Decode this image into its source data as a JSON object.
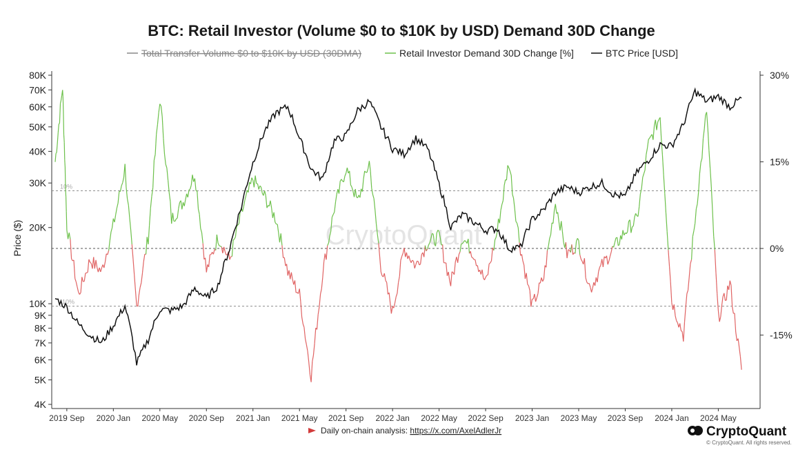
{
  "chart_data": {
    "type": "line",
    "title": "BTC: Retail Investor (Volume $0 to $10K by USD) Demand 30D Change",
    "legend": [
      {
        "label": "Total Transfer Volume $0 to $10K by USD (30DMA)",
        "color": "#888888",
        "hidden": true
      },
      {
        "label": "Retail Investor Demand 30D Change [%]",
        "color": "#6cc04a",
        "hidden": false
      },
      {
        "label": "BTC Price [USD]",
        "color": "#111111",
        "hidden": false
      }
    ],
    "legend_position": "top-center",
    "x_tick_labels": [
      "2019 Sep",
      "2020 Jan",
      "2020 May",
      "2020 Sep",
      "2021 Jan",
      "2021 May",
      "2021 Sep",
      "2022 Jan",
      "2022 May",
      "2022 Sep",
      "2023 Jan",
      "2023 May",
      "2023 Sep",
      "2024 Jan",
      "2024 May"
    ],
    "xlim": [
      "2019-08",
      "2024-08"
    ],
    "left_axis": {
      "label": "Price ($)",
      "scale": "log",
      "range": [
        4000,
        80000
      ],
      "tick_values": [
        4000,
        5000,
        6000,
        7000,
        8000,
        9000,
        10000,
        20000,
        30000,
        40000,
        50000,
        60000,
        70000,
        80000
      ],
      "tick_labels": [
        "4K",
        "5K",
        "6K",
        "7K",
        "8K",
        "9K",
        "10K",
        "20K",
        "30K",
        "40K",
        "50K",
        "60K",
        "70K",
        "80K"
      ]
    },
    "right_axis": {
      "label": "",
      "range": [
        -27,
        30
      ],
      "tick_values": [
        30,
        15,
        0,
        -15
      ],
      "tick_labels": [
        "30%",
        "15%",
        "0%",
        "-15%"
      ]
    },
    "reference_lines": [
      {
        "value": 10,
        "label": "10%"
      },
      {
        "value": 0,
        "label": ""
      },
      {
        "value": -10,
        "label": "-10%"
      }
    ],
    "positive_color": "#6cc04a",
    "negative_color": "#e06262",
    "price_series": {
      "name": "BTC Price [USD]",
      "x": [
        "2019-08",
        "2019-09",
        "2019-10",
        "2019-11",
        "2019-12",
        "2020-01",
        "2020-02",
        "2020-03",
        "2020-04",
        "2020-05",
        "2020-06",
        "2020-07",
        "2020-08",
        "2020-09",
        "2020-10",
        "2020-11",
        "2020-12",
        "2021-01",
        "2021-02",
        "2021-03",
        "2021-04",
        "2021-05",
        "2021-06",
        "2021-07",
        "2021-08",
        "2021-09",
        "2021-10",
        "2021-11",
        "2021-12",
        "2022-01",
        "2022-02",
        "2022-03",
        "2022-04",
        "2022-05",
        "2022-06",
        "2022-07",
        "2022-08",
        "2022-09",
        "2022-10",
        "2022-11",
        "2022-12",
        "2023-01",
        "2023-02",
        "2023-03",
        "2023-04",
        "2023-05",
        "2023-06",
        "2023-07",
        "2023-08",
        "2023-09",
        "2023-10",
        "2023-11",
        "2023-12",
        "2024-01",
        "2024-02",
        "2024-03",
        "2024-04",
        "2024-05",
        "2024-06",
        "2024-07"
      ],
      "values": [
        10500,
        9700,
        8300,
        7500,
        7000,
        8200,
        9800,
        5800,
        7200,
        9500,
        9400,
        9800,
        11500,
        10500,
        11800,
        16500,
        24000,
        36000,
        48000,
        57000,
        60000,
        45000,
        34000,
        31000,
        44000,
        46000,
        58000,
        63000,
        50000,
        41000,
        39000,
        45000,
        41000,
        29500,
        20000,
        22500,
        21000,
        19500,
        19800,
        16500,
        16700,
        21500,
        23500,
        27500,
        29000,
        27500,
        29000,
        30000,
        27000,
        26500,
        33000,
        37000,
        42500,
        42000,
        51000,
        69000,
        63000,
        66000,
        60000,
        65000
      ]
    },
    "demand_series": {
      "name": "Retail Investor Demand 30D Change [%]",
      "x": [
        "2019-08",
        "2019-08-20",
        "2019-09",
        "2019-10",
        "2019-11",
        "2019-12",
        "2020-01",
        "2020-02",
        "2020-03",
        "2020-04",
        "2020-05",
        "2020-06",
        "2020-07",
        "2020-08",
        "2020-09",
        "2020-10",
        "2020-11",
        "2020-12",
        "2021-01",
        "2021-02",
        "2021-03",
        "2021-04",
        "2021-05",
        "2021-06",
        "2021-07",
        "2021-08",
        "2021-09",
        "2021-10",
        "2021-11",
        "2021-12",
        "2022-01",
        "2022-02",
        "2022-03",
        "2022-04",
        "2022-05",
        "2022-06",
        "2022-07",
        "2022-08",
        "2022-09",
        "2022-10",
        "2022-11",
        "2022-12",
        "2023-01",
        "2023-02",
        "2023-03",
        "2023-04",
        "2023-05",
        "2023-06",
        "2023-07",
        "2023-08",
        "2023-09",
        "2023-10",
        "2023-11",
        "2023-12",
        "2024-01",
        "2024-02",
        "2024-03",
        "2024-04",
        "2024-05",
        "2024-06",
        "2024-07"
      ],
      "values": [
        15,
        28,
        4,
        -8,
        -2,
        -4,
        4,
        14,
        -10,
        2,
        26,
        5,
        8,
        13,
        -4,
        2,
        -2,
        6,
        12,
        9,
        5,
        -4,
        -8,
        -22,
        -4,
        7,
        14,
        8,
        15,
        -3,
        -11,
        0,
        -3,
        1,
        2,
        -6,
        2,
        -1,
        -6,
        3,
        15,
        0,
        -10,
        -5,
        8,
        -1,
        1,
        -7,
        -3,
        0,
        3,
        5,
        18,
        23,
        -9,
        -15,
        5,
        24,
        -12,
        -6,
        -21
      ]
    }
  },
  "footer": {
    "prefix": "Daily on-chain analysis: ",
    "link": "https://x.com/AxelAdlerJr",
    "brand": "CryptoQuant",
    "rights": "© CryptoQuant. All rights reserved."
  },
  "watermark": "CryptoQuant"
}
